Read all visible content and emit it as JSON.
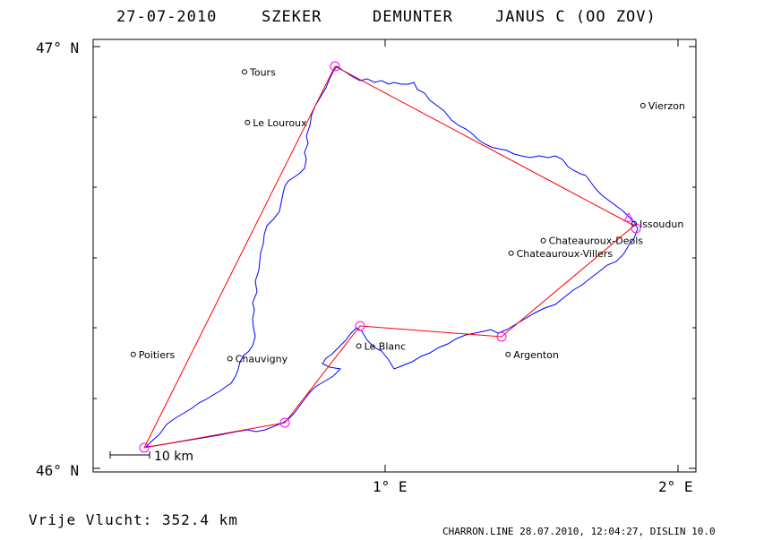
{
  "header": {
    "date": "27-07-2010",
    "pilot": "SZEKER",
    "copilot": "DEMUNTER",
    "glider": "JANUS C (OO ZOV)"
  },
  "axes": {
    "lat_top": "47° N",
    "lat_bottom": "46° N",
    "lon_1": "1° E",
    "lon_2": "2° E"
  },
  "cities": [
    {
      "name": "Tours",
      "lon": 0.52,
      "lat": 46.94
    },
    {
      "name": "Le Louroux",
      "lon": 0.53,
      "lat": 46.82
    },
    {
      "name": "Vierzon",
      "lon": 1.88,
      "lat": 46.86
    },
    {
      "name": "Issoudun",
      "lon": 1.85,
      "lat": 46.58
    },
    {
      "name": "Chateauroux-Deols",
      "lon": 1.54,
      "lat": 46.54
    },
    {
      "name": "Chateauroux-Villers",
      "lon": 1.43,
      "lat": 46.51
    },
    {
      "name": "Poitiers",
      "lon": 0.14,
      "lat": 46.27
    },
    {
      "name": "Chauvigny",
      "lon": 0.47,
      "lat": 46.26
    },
    {
      "name": "Le Blanc",
      "lon": 0.91,
      "lat": 46.29
    },
    {
      "name": "Argenton",
      "lon": 1.42,
      "lat": 46.27
    }
  ],
  "turnpoints": [
    {
      "lon": 0.17,
      "lat": 46.05
    },
    {
      "lon": 0.81,
      "lat": 46.95
    },
    {
      "lon": 1.84,
      "lat": 46.58
    },
    {
      "lon": 1.4,
      "lat": 46.32
    },
    {
      "lon": 0.9,
      "lat": 46.34
    },
    {
      "lon": 0.65,
      "lat": 46.11
    }
  ],
  "scale": {
    "label": "10 km"
  },
  "footer": {
    "distance": "Vrije Vlucht:  352.4 km",
    "credit": "CHARRON.LINE 28.07.2010, 12:04:27, DISLIN 10.0"
  },
  "colors": {
    "track": "#0000ff",
    "task": "#ff0000",
    "turnpoint": "#ff00ff",
    "frame": "#000000"
  }
}
